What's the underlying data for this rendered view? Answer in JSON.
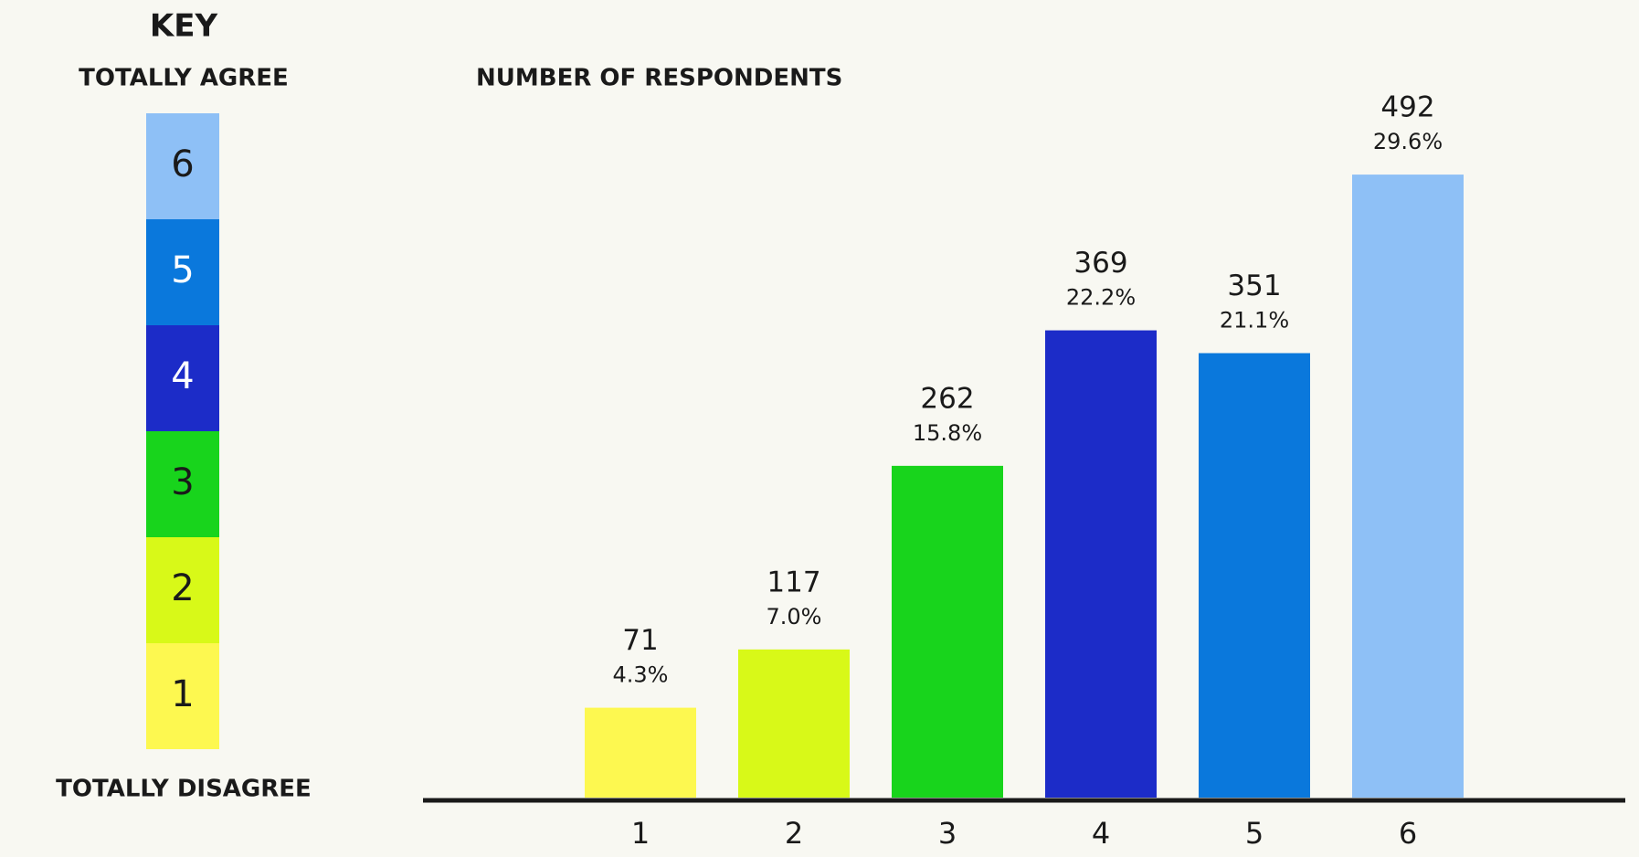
{
  "chart_data": {
    "type": "bar",
    "title": "NUMBER OF RESPONDENTS",
    "categories": [
      "1",
      "2",
      "3",
      "4",
      "5",
      "6"
    ],
    "values": [
      71,
      117,
      262,
      369,
      351,
      492
    ],
    "percent_labels": [
      "4.3%",
      "7.0%",
      "15.8%",
      "22.2%",
      "21.1%",
      "29.6%"
    ],
    "colors": [
      "#fdf850",
      "#d8f918",
      "#18d41c",
      "#1c2cc8",
      "#0a78dc",
      "#8ec0f6"
    ],
    "ylim": [
      0,
      500
    ],
    "legend": {
      "title": "KEY",
      "top_label": "TOTALLY AGREE",
      "bottom_label": "TOTALLY DISAGREE"
    }
  }
}
